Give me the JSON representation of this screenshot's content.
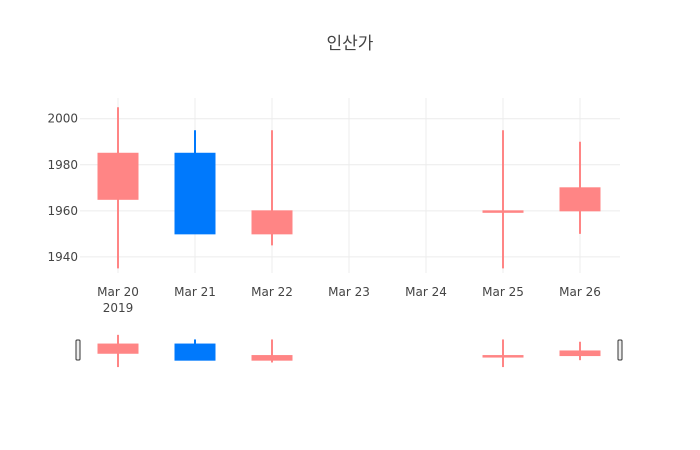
{
  "chart_data": {
    "type": "candlestick",
    "title": "인산가",
    "x_tick_labels": [
      "Mar 20",
      "Mar 21",
      "Mar 22",
      "Mar 23",
      "Mar 24",
      "Mar 25",
      "Mar 26"
    ],
    "x_year_label": "2019",
    "y_ticks": [
      1940,
      1960,
      1980,
      2000
    ],
    "y_range": [
      1933,
      2009
    ],
    "candles": [
      {
        "date": "2019-03-20",
        "open": 1965,
        "high": 2005,
        "low": 1935,
        "close": 1985
      },
      {
        "date": "2019-03-21",
        "open": 1985,
        "high": 1995,
        "low": 1950,
        "close": 1950
      },
      {
        "date": "2019-03-22",
        "open": 1950,
        "high": 1995,
        "low": 1945,
        "close": 1960
      },
      {
        "date": "2019-03-25",
        "open": 1960,
        "high": 1995,
        "low": 1935,
        "close": 1960
      },
      {
        "date": "2019-03-26",
        "open": 1960,
        "high": 1990,
        "low": 1950,
        "close": 1970
      }
    ],
    "increasing_color": "#ff8585",
    "decreasing_color": "#0079fc",
    "grid": true,
    "range_slider": true
  }
}
